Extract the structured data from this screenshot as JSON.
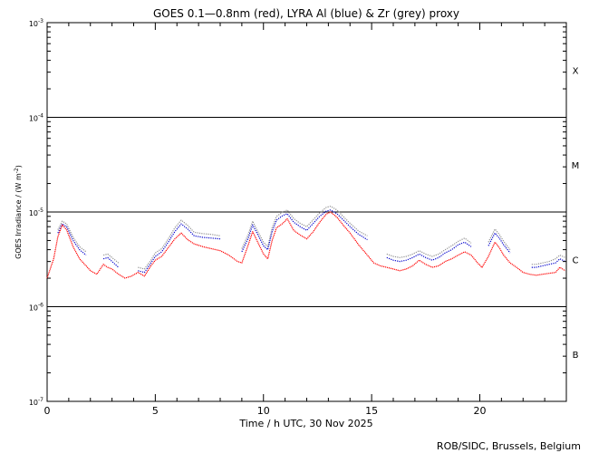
{
  "chart_data": {
    "type": "line",
    "title": "GOES 0.1—0.8nm (red), LYRA Al (blue) & Zr (grey) proxy",
    "xlabel": "Time / h UTC, 30 Nov 2025",
    "ylabel_main": "GOES Irradiance / (W m",
    "ylabel_sup": "-2",
    "ylabel_close": ")",
    "credit": "ROB/SIDC, Brussels, Belgium",
    "y_scale": "log",
    "xlim": [
      0,
      24
    ],
    "ylim": [
      1e-07,
      0.001
    ],
    "x_ticks": [
      {
        "value": 0,
        "label": "0"
      },
      {
        "value": 5,
        "label": "5"
      },
      {
        "value": 10,
        "label": "10"
      },
      {
        "value": 15,
        "label": "15"
      },
      {
        "value": 20,
        "label": "20"
      }
    ],
    "y_ticks": [
      {
        "value": 1e-07,
        "base": "10",
        "exp": "-7"
      },
      {
        "value": 1e-06,
        "base": "10",
        "exp": "-6"
      },
      {
        "value": 1e-05,
        "base": "10",
        "exp": "-5"
      },
      {
        "value": 0.0001,
        "base": "10",
        "exp": "-4"
      },
      {
        "value": 0.001,
        "base": "10",
        "exp": "-3"
      }
    ],
    "class_lines": [
      1e-06,
      1e-05,
      0.0001
    ],
    "flare_classes": [
      {
        "label": "B",
        "value": 3.16e-07
      },
      {
        "label": "C",
        "value": 3.16e-06
      },
      {
        "label": "M",
        "value": 3.16e-05
      },
      {
        "label": "X",
        "value": 0.000316
      }
    ],
    "series": [
      {
        "name": "GOES 0.1—0.8nm",
        "color": "#ff0000",
        "x": [
          0.0,
          0.3,
          0.5,
          0.7,
          0.9,
          1.2,
          1.5,
          1.8,
          2.0,
          2.3,
          2.6,
          2.8,
          3.0,
          3.3,
          3.6,
          3.9,
          4.2,
          4.5,
          4.8,
          5.0,
          5.3,
          5.6,
          5.9,
          6.2,
          6.5,
          6.8,
          7.2,
          7.6,
          8.0,
          8.4,
          8.8,
          9.0,
          9.3,
          9.5,
          9.7,
          10.0,
          10.2,
          10.4,
          10.6,
          10.9,
          11.1,
          11.4,
          11.7,
          12.0,
          12.3,
          12.6,
          12.9,
          13.1,
          13.4,
          13.7,
          14.0,
          14.4,
          14.8,
          15.1,
          15.4,
          15.7,
          16.0,
          16.3,
          16.6,
          16.9,
          17.2,
          17.5,
          17.8,
          18.1,
          18.4,
          18.7,
          19.0,
          19.3,
          19.6,
          19.9,
          20.1,
          20.4,
          20.7,
          20.9,
          21.1,
          21.4,
          21.7,
          22.0,
          22.3,
          22.6,
          22.9,
          23.2,
          23.5,
          23.7,
          23.95
        ],
        "y": [
          2e-06,
          3.2e-06,
          5.5e-06,
          7.3e-06,
          6.5e-06,
          4.3e-06,
          3.2e-06,
          2.7e-06,
          2.4e-06,
          2.2e-06,
          2.8e-06,
          2.6e-06,
          2.5e-06,
          2.2e-06,
          2e-06,
          2.1e-06,
          2.3e-06,
          2.1e-06,
          2.7e-06,
          3.1e-06,
          3.4e-06,
          4.2e-06,
          5.2e-06,
          6e-06,
          5.1e-06,
          4.6e-06,
          4.3e-06,
          4.1e-06,
          3.9e-06,
          3.5e-06,
          3e-06,
          2.9e-06,
          4.5e-06,
          6.2e-06,
          5e-06,
          3.6e-06,
          3.2e-06,
          5e-06,
          6.8e-06,
          7.6e-06,
          8.5e-06,
          6.4e-06,
          5.7e-06,
          5.2e-06,
          6.2e-06,
          7.8e-06,
          9.5e-06,
          1e-05,
          8.8e-06,
          7.2e-06,
          6e-06,
          4.5e-06,
          3.5e-06,
          2.9e-06,
          2.7e-06,
          2.6e-06,
          2.5e-06,
          2.4e-06,
          2.5e-06,
          2.7e-06,
          3.1e-06,
          2.8e-06,
          2.6e-06,
          2.7e-06,
          3e-06,
          3.2e-06,
          3.5e-06,
          3.8e-06,
          3.5e-06,
          2.9e-06,
          2.6e-06,
          3.4e-06,
          4.8e-06,
          4.2e-06,
          3.5e-06,
          2.9e-06,
          2.6e-06,
          2.3e-06,
          2.2e-06,
          2.15e-06,
          2.2e-06,
          2.25e-06,
          2.3e-06,
          2.6e-06,
          2.4e-06
        ]
      },
      {
        "name": "LYRA Al",
        "color": "#0000cc",
        "x": [
          0.5,
          0.7,
          0.9,
          1.2,
          1.5,
          1.8,
          2.6,
          2.8,
          3.0,
          3.3,
          4.2,
          4.5,
          4.8,
          5.0,
          5.3,
          5.6,
          5.9,
          6.2,
          6.5,
          6.8,
          7.2,
          7.6,
          8.0,
          9.0,
          9.3,
          9.5,
          9.7,
          10.0,
          10.2,
          10.4,
          10.6,
          10.9,
          11.1,
          11.4,
          11.7,
          12.0,
          12.3,
          12.6,
          12.9,
          13.1,
          13.4,
          13.7,
          14.0,
          14.4,
          14.8,
          15.7,
          16.0,
          16.3,
          16.6,
          16.9,
          17.2,
          17.5,
          17.8,
          18.1,
          18.4,
          18.7,
          19.0,
          19.3,
          19.6,
          20.4,
          20.7,
          20.9,
          21.1,
          21.4,
          22.4,
          22.6,
          22.9,
          23.2,
          23.5,
          23.7,
          23.95
        ],
        "y": [
          6e-06,
          7.5e-06,
          7e-06,
          5e-06,
          4e-06,
          3.5e-06,
          3.2e-06,
          3.3e-06,
          3e-06,
          2.6e-06,
          2.4e-06,
          2.3e-06,
          2.9e-06,
          3.4e-06,
          3.8e-06,
          4.8e-06,
          6.2e-06,
          7.5e-06,
          6.6e-06,
          5.6e-06,
          5.4e-06,
          5.3e-06,
          5.2e-06,
          3.8e-06,
          5.3e-06,
          7.3e-06,
          6e-06,
          4.4e-06,
          4e-06,
          6.2e-06,
          8.2e-06,
          9.2e-06,
          9.6e-06,
          7.8e-06,
          7e-06,
          6.4e-06,
          7.6e-06,
          9e-06,
          1.02e-05,
          1.05e-05,
          9.6e-06,
          8.2e-06,
          7e-06,
          5.8e-06,
          5.1e-06,
          3.3e-06,
          3.1e-06,
          3e-06,
          3.1e-06,
          3.3e-06,
          3.6e-06,
          3.3e-06,
          3.1e-06,
          3.3e-06,
          3.7e-06,
          4e-06,
          4.5e-06,
          4.8e-06,
          4.3e-06,
          4.4e-06,
          6e-06,
          5.3e-06,
          4.5e-06,
          3.7e-06,
          2.6e-06,
          2.6e-06,
          2.7e-06,
          2.8e-06,
          2.9e-06,
          3.2e-06,
          3e-06
        ]
      },
      {
        "name": "Zr",
        "color": "#909090",
        "x": [
          0.5,
          0.7,
          0.9,
          1.2,
          1.5,
          1.8,
          2.6,
          2.8,
          3.0,
          3.3,
          4.2,
          4.5,
          4.8,
          5.0,
          5.3,
          5.6,
          5.9,
          6.2,
          6.5,
          6.8,
          7.2,
          7.6,
          8.0,
          9.0,
          9.3,
          9.5,
          9.7,
          10.0,
          10.2,
          10.4,
          10.6,
          10.9,
          11.1,
          11.4,
          11.7,
          12.0,
          12.3,
          12.6,
          12.9,
          13.1,
          13.4,
          13.7,
          14.0,
          14.4,
          14.8,
          15.7,
          16.0,
          16.3,
          16.6,
          16.9,
          17.2,
          17.5,
          17.8,
          18.1,
          18.4,
          18.7,
          19.0,
          19.3,
          19.6,
          20.4,
          20.7,
          20.9,
          21.1,
          21.4,
          22.4,
          22.6,
          22.9,
          23.2,
          23.5,
          23.7,
          23.95
        ],
        "y": [
          6.5e-06,
          8e-06,
          7.5e-06,
          5.4e-06,
          4.3e-06,
          3.8e-06,
          3.5e-06,
          3.6e-06,
          3.3e-06,
          2.9e-06,
          2.6e-06,
          2.5e-06,
          3.1e-06,
          3.7e-06,
          4.1e-06,
          5.2e-06,
          6.8e-06,
          8.2e-06,
          7.2e-06,
          6.1e-06,
          5.9e-06,
          5.8e-06,
          5.6e-06,
          4.1e-06,
          5.8e-06,
          8e-06,
          6.5e-06,
          4.8e-06,
          4.3e-06,
          6.8e-06,
          9e-06,
          1e-05,
          1.05e-05,
          8.5e-06,
          7.6e-06,
          7e-06,
          8.3e-06,
          9.8e-06,
          1.12e-05,
          1.15e-05,
          1.05e-05,
          8.9e-06,
          7.6e-06,
          6.3e-06,
          5.6e-06,
          3.6e-06,
          3.4e-06,
          3.3e-06,
          3.4e-06,
          3.6e-06,
          3.9e-06,
          3.6e-06,
          3.4e-06,
          3.6e-06,
          4e-06,
          4.4e-06,
          4.9e-06,
          5.3e-06,
          4.7e-06,
          4.8e-06,
          6.6e-06,
          5.8e-06,
          4.9e-06,
          4e-06,
          2.8e-06,
          2.8e-06,
          2.9e-06,
          3e-06,
          3.2e-06,
          3.5e-06,
          3.3e-06
        ]
      }
    ],
    "grid": false,
    "legend": "none"
  }
}
